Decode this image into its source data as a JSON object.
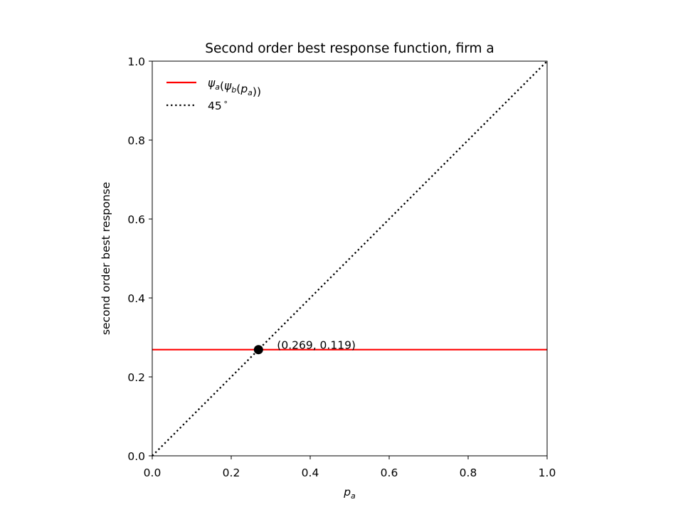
{
  "chart_data": {
    "type": "line",
    "title": "Second order best response function, firm a",
    "xlabel": {
      "main": "p",
      "sub": "a"
    },
    "ylabel": "second order best response",
    "xlim": [
      0.0,
      1.0
    ],
    "ylim": [
      0.0,
      1.0
    ],
    "xticks": [
      0.0,
      0.2,
      0.4,
      0.6,
      0.8,
      1.0
    ],
    "yticks": [
      0.0,
      0.2,
      0.4,
      0.6,
      0.8,
      1.0
    ],
    "xtick_labels": [
      "0.0",
      "0.2",
      "0.4",
      "0.6",
      "0.8",
      "1.0"
    ],
    "ytick_labels": [
      "0.0",
      "0.2",
      "0.4",
      "0.6",
      "0.8",
      "1.0"
    ],
    "grid": false,
    "legend_position": "top-left",
    "series": [
      {
        "key": "best_response",
        "legend": [
          {
            "t": "ψ",
            "sub": "a"
          },
          {
            "t": "("
          },
          {
            "t": "ψ",
            "sub": "b"
          },
          {
            "t": "("
          },
          {
            "t": "p",
            "sub": "a"
          },
          {
            "t": "))"
          }
        ],
        "color": "#ff0000",
        "style": "solid",
        "x": [
          0.0,
          1.0
        ],
        "y": [
          0.269,
          0.269
        ]
      },
      {
        "key": "45deg",
        "legend": [
          {
            "t": "45"
          },
          {
            "t": "∘",
            "sup": true
          }
        ],
        "color": "#000000",
        "style": "dotted",
        "x": [
          0.0,
          1.0
        ],
        "y": [
          0.0,
          1.0
        ]
      }
    ],
    "point": {
      "x": 0.269,
      "y": 0.269,
      "color": "#000000"
    },
    "annotation": {
      "text": "(0.269, 0.119)",
      "x": 0.269,
      "y": 0.269
    }
  }
}
